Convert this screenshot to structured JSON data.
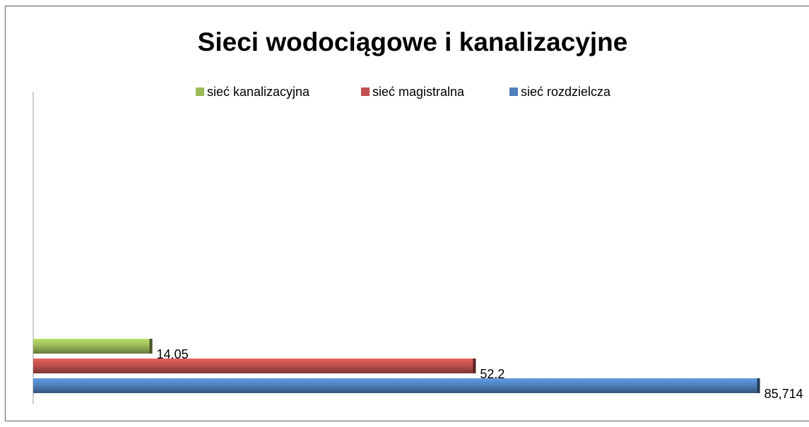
{
  "chart_data": {
    "type": "barh",
    "title": "Sieci wodociągowe i kanalizacyjne",
    "categories": [
      null
    ],
    "series": [
      {
        "name": "sieć kanalizacyjna",
        "color": "#9bbb59",
        "values": [
          14.05
        ],
        "value_labels": [
          "14,05"
        ]
      },
      {
        "name": "sieć magistralna",
        "color": "#c0504d",
        "values": [
          52.2
        ],
        "value_labels": [
          "52,2"
        ]
      },
      {
        "name": "sieć rozdzielcza",
        "color": "#4f81bd",
        "values": [
          85.714
        ],
        "value_labels": [
          "85,714"
        ]
      }
    ],
    "xlim": [
      0,
      90
    ],
    "legend": "top"
  }
}
